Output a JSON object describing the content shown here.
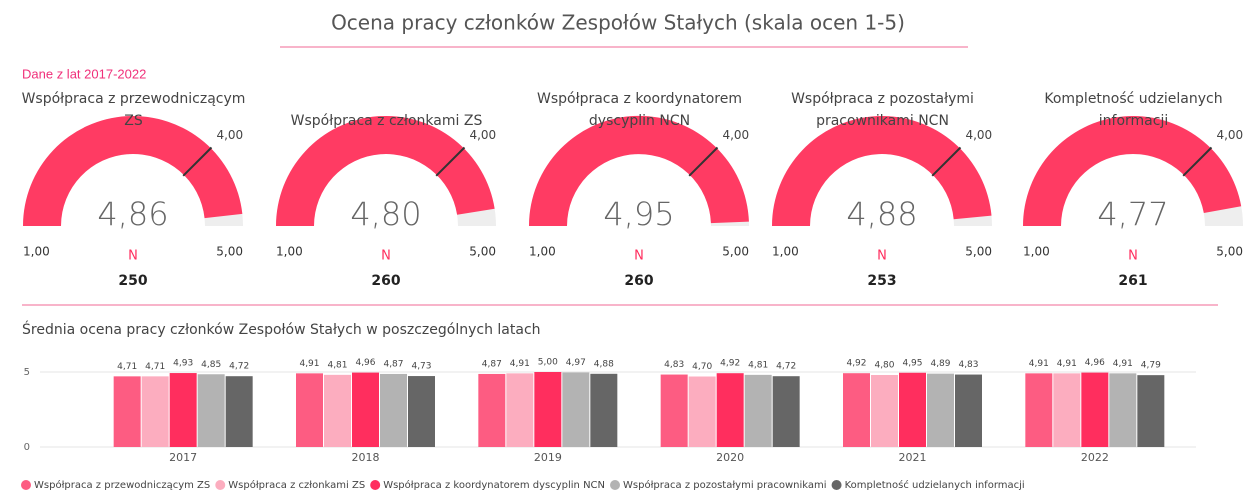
{
  "title": "Ocena pracy członków Zespołów Stałych (skala ocen 1-5)",
  "subtitle": "Dane z lat 2017-2022",
  "chart_data": [
    {
      "type": "gauge",
      "title": "Współpraca z przewodniczącym ZS",
      "value": 4.86,
      "value_label": "4,86",
      "color": "#ff3b63",
      "range": [
        {
          "value": 1,
          "label": "1,00"
        },
        {
          "value": 5,
          "label": "5,00"
        }
      ],
      "target": {
        "value": 4,
        "label": "4,00"
      },
      "n_label": "N",
      "n": 250
    },
    {
      "type": "gauge",
      "title": "Współpraca z członkami ZS",
      "value": 4.8,
      "value_label": "4,80",
      "color": "#ff3b63",
      "range": [
        {
          "value": 1,
          "label": "1,00"
        },
        {
          "value": 5,
          "label": "5,00"
        }
      ],
      "target": {
        "value": 4,
        "label": "4,00"
      },
      "n_label": "N",
      "n": 260
    },
    {
      "type": "gauge",
      "title": "Współpraca z koordynatorem dyscyplin NCN",
      "value": 4.95,
      "value_label": "4,95",
      "color": "#ff3b63",
      "range": [
        {
          "value": 1,
          "label": "1,00"
        },
        {
          "value": 5,
          "label": "5,00"
        }
      ],
      "target": {
        "value": 4,
        "label": "4,00"
      },
      "n_label": "N",
      "n": 260
    },
    {
      "type": "gauge",
      "title": "Współpraca z pozostałymi pracownikami NCN",
      "value": 4.88,
      "value_label": "4,88",
      "color": "#ff3b63",
      "range": [
        {
          "value": 1,
          "label": "1,00"
        },
        {
          "value": 5,
          "label": "5,00"
        }
      ],
      "target": {
        "value": 4,
        "label": "4,00"
      },
      "n_label": "N",
      "n": 253
    },
    {
      "type": "gauge",
      "title": "Kompletność udzielanych informacji",
      "value": 4.77,
      "value_label": "4,77",
      "color": "#ff3b63",
      "range": [
        {
          "value": 1,
          "label": "1,00"
        },
        {
          "value": 5,
          "label": "5,00"
        }
      ],
      "target": {
        "value": 4,
        "label": "4,00"
      },
      "n_label": "N",
      "n": 261
    },
    {
      "type": "bar",
      "title": "Średnia ocena pracy członków Zespołów Stałych w poszczególnych latach",
      "categories": [
        "2017",
        "2018",
        "2019",
        "2020",
        "2021",
        "2022"
      ],
      "ylim": [
        0,
        6
      ],
      "yticks": [
        0,
        5
      ],
      "grid": true,
      "series": [
        {
          "name": "Współpraca z przewodniczącym ZS",
          "color": "#fd5c82",
          "values": [
            4.71,
            4.91,
            4.87,
            4.83,
            4.92,
            4.91
          ],
          "value_labels": [
            "4,71",
            "4,91",
            "4,87",
            "4,83",
            "4,92",
            "4,91"
          ]
        },
        {
          "name": "Współpraca z członkami ZS",
          "color": "#fcadbf",
          "values": [
            4.71,
            4.81,
            4.91,
            4.7,
            4.8,
            4.91
          ],
          "value_labels": [
            "4,71",
            "4,81",
            "4,91",
            "4,70",
            "4,80",
            "4,91"
          ]
        },
        {
          "name": "Współpraca z koordynatorem dyscyplin NCN",
          "color": "#ff2e5e",
          "values": [
            4.93,
            4.96,
            5.0,
            4.92,
            4.95,
            4.96
          ],
          "value_labels": [
            "4,93",
            "4,96",
            "5,00",
            "4,92",
            "4,95",
            "4,96"
          ]
        },
        {
          "name": "Współpraca z pozostałymi pracownikami",
          "color": "#b3b3b3",
          "values": [
            4.85,
            4.87,
            4.97,
            4.81,
            4.89,
            4.91
          ],
          "value_labels": [
            "4,85",
            "4,87",
            "4,97",
            "4,81",
            "4,89",
            "4,91"
          ]
        },
        {
          "name": "Kompletność udzielanych informacji",
          "color": "#666666",
          "values": [
            4.72,
            4.73,
            4.88,
            4.72,
            4.83,
            4.79
          ],
          "value_labels": [
            "4,72",
            "4,73",
            "4,88",
            "4,72",
            "4,83",
            "4,79"
          ]
        }
      ]
    }
  ]
}
